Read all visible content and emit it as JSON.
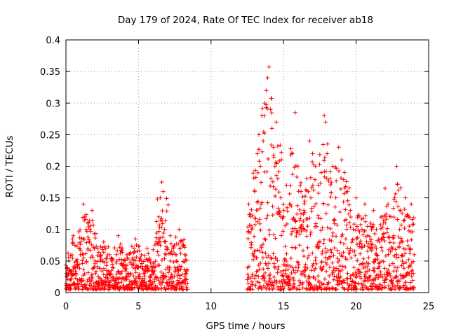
{
  "chart_data": {
    "type": "scatter",
    "title": "Day 179 of 2024, Rate Of TEC Index for receiver ab18",
    "xlabel": "GPS time / hours",
    "ylabel": "ROTI / TECUs",
    "xlim": [
      0,
      25
    ],
    "ylim": [
      0,
      0.4
    ],
    "xticks": [
      0,
      5,
      10,
      15,
      20,
      25
    ],
    "xtick_labels": [
      "0",
      "5",
      "10",
      "15",
      "20",
      "25"
    ],
    "yticks": [
      0,
      0.05,
      0.1,
      0.15,
      0.2,
      0.25,
      0.3,
      0.35,
      0.4
    ],
    "ytick_labels": [
      "0",
      "0.05",
      "0.1",
      "0.15",
      "0.2",
      "0.25",
      "0.3",
      "0.35",
      "0.4"
    ],
    "grid": true,
    "marker": "+",
    "color": "#ff0000",
    "series": [
      {
        "name": "ROTI",
        "note": "representative points read off the plot (dense scatter summarized)",
        "points": [
          [
            0.0,
            0.015
          ],
          [
            0.1,
            0.03
          ],
          [
            0.2,
            0.05
          ],
          [
            0.3,
            0.02
          ],
          [
            0.45,
            0.085
          ],
          [
            0.5,
            0.09
          ],
          [
            0.6,
            0.04
          ],
          [
            0.8,
            0.02
          ],
          [
            1.0,
            0.06
          ],
          [
            1.2,
            0.14
          ],
          [
            1.3,
            0.12
          ],
          [
            1.4,
            0.1
          ],
          [
            1.5,
            0.11
          ],
          [
            1.6,
            0.08
          ],
          [
            1.8,
            0.13
          ],
          [
            2.0,
            0.05
          ],
          [
            2.2,
            0.07
          ],
          [
            2.4,
            0.06
          ],
          [
            2.6,
            0.08
          ],
          [
            2.8,
            0.035
          ],
          [
            3.0,
            0.06
          ],
          [
            3.2,
            0.04
          ],
          [
            3.5,
            0.05
          ],
          [
            3.6,
            0.09
          ],
          [
            3.8,
            0.03
          ],
          [
            4.0,
            0.04
          ],
          [
            4.2,
            0.06
          ],
          [
            4.5,
            0.045
          ],
          [
            4.7,
            0.07
          ],
          [
            4.8,
            0.085
          ],
          [
            5.0,
            0.04
          ],
          [
            5.2,
            0.06
          ],
          [
            5.4,
            0.03
          ],
          [
            5.6,
            0.07
          ],
          [
            5.8,
            0.05
          ],
          [
            6.0,
            0.04
          ],
          [
            6.2,
            0.08
          ],
          [
            6.4,
            0.12
          ],
          [
            6.5,
            0.15
          ],
          [
            6.6,
            0.175
          ],
          [
            6.7,
            0.16
          ],
          [
            6.8,
            0.1
          ],
          [
            6.9,
            0.06
          ],
          [
            7.0,
            0.04
          ],
          [
            7.2,
            0.09
          ],
          [
            7.4,
            0.07
          ],
          [
            7.6,
            0.05
          ],
          [
            7.8,
            0.1
          ],
          [
            8.0,
            0.08
          ],
          [
            8.2,
            0.06
          ],
          [
            8.3,
            0.03
          ],
          [
            12.6,
            0.14
          ],
          [
            12.7,
            0.12
          ],
          [
            12.8,
            0.1
          ],
          [
            13.0,
            0.16
          ],
          [
            13.2,
            0.22
          ],
          [
            13.3,
            0.25
          ],
          [
            13.4,
            0.2
          ],
          [
            13.5,
            0.28
          ],
          [
            13.6,
            0.24
          ],
          [
            13.7,
            0.3
          ],
          [
            13.8,
            0.32
          ],
          [
            13.9,
            0.34
          ],
          [
            14.0,
            0.357
          ],
          [
            14.1,
            0.29
          ],
          [
            14.2,
            0.26
          ],
          [
            14.3,
            0.23
          ],
          [
            14.4,
            0.2
          ],
          [
            14.5,
            0.27
          ],
          [
            14.6,
            0.18
          ],
          [
            14.8,
            0.15
          ],
          [
            15.0,
            0.12
          ],
          [
            15.2,
            0.17
          ],
          [
            15.4,
            0.14
          ],
          [
            15.6,
            0.22
          ],
          [
            15.8,
            0.285
          ],
          [
            16.0,
            0.2
          ],
          [
            16.2,
            0.16
          ],
          [
            16.4,
            0.13
          ],
          [
            16.6,
            0.18
          ],
          [
            16.8,
            0.24
          ],
          [
            17.0,
            0.22
          ],
          [
            17.2,
            0.2
          ],
          [
            17.4,
            0.17
          ],
          [
            17.6,
            0.19
          ],
          [
            17.8,
            0.28
          ],
          [
            17.9,
            0.27
          ],
          [
            18.0,
            0.22
          ],
          [
            18.2,
            0.18
          ],
          [
            18.4,
            0.2
          ],
          [
            18.6,
            0.15
          ],
          [
            18.8,
            0.23
          ],
          [
            19.0,
            0.21
          ],
          [
            19.2,
            0.19
          ],
          [
            19.4,
            0.16
          ],
          [
            19.6,
            0.13
          ],
          [
            19.8,
            0.1
          ],
          [
            20.0,
            0.15
          ],
          [
            20.2,
            0.12
          ],
          [
            20.4,
            0.1
          ],
          [
            20.6,
            0.14
          ],
          [
            20.8,
            0.09
          ],
          [
            21.0,
            0.11
          ],
          [
            21.2,
            0.13
          ],
          [
            21.4,
            0.1
          ],
          [
            21.6,
            0.08
          ],
          [
            21.8,
            0.12
          ],
          [
            22.0,
            0.165
          ],
          [
            22.2,
            0.14
          ],
          [
            22.4,
            0.12
          ],
          [
            22.6,
            0.09
          ],
          [
            22.8,
            0.2
          ],
          [
            23.0,
            0.1
          ],
          [
            23.2,
            0.08
          ],
          [
            23.4,
            0.15
          ],
          [
            23.6,
            0.12
          ],
          [
            23.8,
            0.14
          ],
          [
            24.0,
            0.06
          ]
        ]
      }
    ]
  }
}
